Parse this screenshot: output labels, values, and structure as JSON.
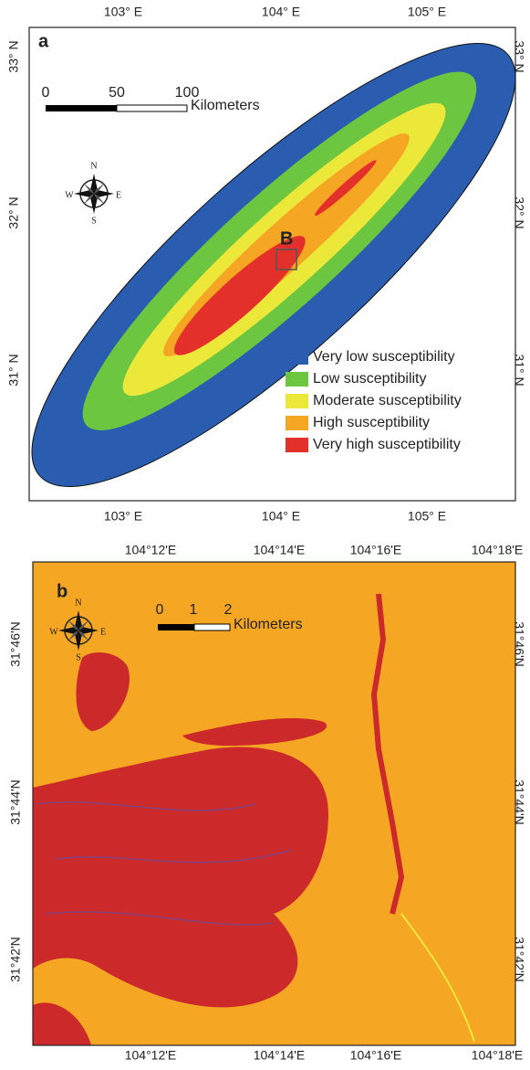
{
  "panel_a": {
    "label": "a",
    "lon_labels": [
      "103° E",
      "104° E",
      "105° E"
    ],
    "lat_labels": [
      "33° N",
      "32° N",
      "31° N"
    ],
    "scale_bar": {
      "ticks": [
        "0",
        "50",
        "100"
      ],
      "unit": "Kilometers"
    },
    "compass": {
      "n": "N",
      "s": "S",
      "e": "E",
      "w": "W"
    },
    "inset_label": "B",
    "legend": [
      {
        "name": "Very low susceptibility",
        "color": "#2a5db0"
      },
      {
        "name": "Low susceptibility",
        "color": "#6cc63f"
      },
      {
        "name": "Moderate susceptibility",
        "color": "#ece83a"
      },
      {
        "name": "High susceptibility",
        "color": "#f5a623"
      },
      {
        "name": "Very high susceptibility",
        "color": "#e4302b"
      }
    ]
  },
  "panel_b": {
    "label": "b",
    "lon_labels": [
      "104°12'E",
      "104°14'E",
      "104°16'E",
      "104°18'E"
    ],
    "lat_labels": [
      "31°46'N",
      "31°44'N",
      "31°42'N"
    ],
    "scale_bar": {
      "ticks": [
        "0",
        "1",
        "2"
      ],
      "unit": "Kilometers"
    },
    "compass": {
      "n": "N",
      "s": "S",
      "e": "E",
      "w": "W"
    }
  }
}
